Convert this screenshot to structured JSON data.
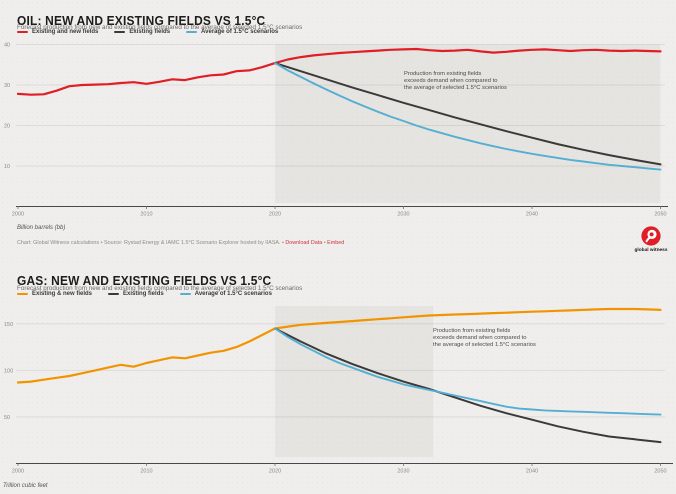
{
  "page": {
    "background": "#efeeec"
  },
  "branding": {
    "logo_label": "global witness",
    "logo_color": "#df1e26"
  },
  "chart_data": [
    {
      "id": "oil",
      "type": "line",
      "title": "OIL: NEW AND EXISTING FIELDS VS 1.5°C",
      "subtitle": "Forecast production from new and existing fields compared to the average of selected 1.5°C scenarios",
      "xlabel": "",
      "ylabel": "Billion barrels (bb)",
      "x_ticks": [
        2000,
        2010,
        2020,
        2030,
        2040,
        2050
      ],
      "y_ticks": [
        10,
        20,
        30,
        40
      ],
      "xlim": [
        2000,
        2050
      ],
      "ylim": [
        0,
        41
      ],
      "grid": true,
      "legend_position": "top-left",
      "colors": {
        "shade": "#e6e4e1",
        "axis": "#4a4846",
        "grid": "rgba(0,0,0,0.08)",
        "tick_text": "#8c8a86"
      },
      "legend": [
        {
          "label": "Existing and new fields",
          "color": "#df1e26"
        },
        {
          "label": "Existing fields",
          "color": "#3a3a38"
        },
        {
          "label": "Average of 1.5°C scenarios",
          "color": "#55aed4"
        }
      ],
      "shaded_region": {
        "x_start": 2020,
        "x_end": 2050
      },
      "annotation": {
        "lines": [
          "Production from existing fields",
          "exceeds demand when compared to",
          "the average of selected 1.5°C scenarios"
        ]
      },
      "series": [
        {
          "name": "Existing and new fields",
          "color": "#df1e26",
          "width": 2.2,
          "points": [
            [
              2000,
              27.8
            ],
            [
              2001,
              27.6
            ],
            [
              2002,
              27.7
            ],
            [
              2003,
              28.6
            ],
            [
              2004,
              29.7
            ],
            [
              2005,
              30.0
            ],
            [
              2006,
              30.1
            ],
            [
              2007,
              30.2
            ],
            [
              2008,
              30.5
            ],
            [
              2009,
              30.7
            ],
            [
              2010,
              30.3
            ],
            [
              2011,
              30.8
            ],
            [
              2012,
              31.4
            ],
            [
              2013,
              31.2
            ],
            [
              2014,
              31.9
            ],
            [
              2015,
              32.4
            ],
            [
              2016,
              32.6
            ],
            [
              2017,
              33.4
            ],
            [
              2018,
              33.6
            ],
            [
              2019,
              34.4
            ],
            [
              2020,
              35.4
            ],
            [
              2021,
              36.3
            ],
            [
              2022,
              36.9
            ],
            [
              2023,
              37.3
            ],
            [
              2024,
              37.6
            ],
            [
              2025,
              37.9
            ],
            [
              2026,
              38.1
            ],
            [
              2027,
              38.3
            ],
            [
              2028,
              38.5
            ],
            [
              2029,
              38.7
            ],
            [
              2030,
              38.8
            ],
            [
              2031,
              38.9
            ],
            [
              2032,
              38.6
            ],
            [
              2033,
              38.4
            ],
            [
              2034,
              38.5
            ],
            [
              2035,
              38.7
            ],
            [
              2036,
              38.3
            ],
            [
              2037,
              38.0
            ],
            [
              2038,
              38.2
            ],
            [
              2039,
              38.5
            ],
            [
              2040,
              38.7
            ],
            [
              2041,
              38.8
            ],
            [
              2042,
              38.6
            ],
            [
              2043,
              38.4
            ],
            [
              2044,
              38.6
            ],
            [
              2045,
              38.7
            ],
            [
              2046,
              38.5
            ],
            [
              2047,
              38.4
            ],
            [
              2048,
              38.5
            ],
            [
              2049,
              38.4
            ],
            [
              2050,
              38.3
            ]
          ]
        },
        {
          "name": "Existing fields",
          "color": "#3a3a38",
          "width": 2.0,
          "points": [
            [
              2020,
              35.4
            ],
            [
              2022,
              33.4
            ],
            [
              2024,
              31.4
            ],
            [
              2026,
              29.4
            ],
            [
              2028,
              27.5
            ],
            [
              2030,
              25.6
            ],
            [
              2032,
              23.8
            ],
            [
              2034,
              22.0
            ],
            [
              2036,
              20.3
            ],
            [
              2038,
              18.6
            ],
            [
              2040,
              17.0
            ],
            [
              2042,
              15.4
            ],
            [
              2044,
              14.0
            ],
            [
              2046,
              12.7
            ],
            [
              2048,
              11.5
            ],
            [
              2050,
              10.4
            ]
          ]
        },
        {
          "name": "Average of 1.5°C scenarios",
          "color": "#55aed4",
          "width": 1.9,
          "points": [
            [
              2020,
              35.4
            ],
            [
              2021,
              33.6
            ],
            [
              2022,
              32.0
            ],
            [
              2023,
              30.4
            ],
            [
              2024,
              28.9
            ],
            [
              2025,
              27.4
            ],
            [
              2026,
              26.0
            ],
            [
              2027,
              24.7
            ],
            [
              2028,
              23.4
            ],
            [
              2029,
              22.2
            ],
            [
              2030,
              21.1
            ],
            [
              2031,
              20.0
            ],
            [
              2032,
              19.0
            ],
            [
              2033,
              18.1
            ],
            [
              2034,
              17.2
            ],
            [
              2035,
              16.4
            ],
            [
              2036,
              15.6
            ],
            [
              2037,
              14.9
            ],
            [
              2038,
              14.2
            ],
            [
              2039,
              13.6
            ],
            [
              2040,
              13.0
            ],
            [
              2041,
              12.5
            ],
            [
              2042,
              12.0
            ],
            [
              2043,
              11.5
            ],
            [
              2044,
              11.1
            ],
            [
              2045,
              10.7
            ],
            [
              2046,
              10.3
            ],
            [
              2047,
              10.0
            ],
            [
              2048,
              9.7
            ],
            [
              2049,
              9.4
            ],
            [
              2050,
              9.1
            ]
          ]
        }
      ],
      "source": {
        "text": "Chart: Global Witness calculations • Source: Rystad Energy & IAMC 1.5°C Scenario Explorer hosted by IIASA. • ",
        "link_download": "Download Data",
        "separator": " • ",
        "link_embed": "Embed"
      }
    },
    {
      "id": "gas",
      "type": "line",
      "title": "GAS: NEW AND EXISTING FIELDS VS 1.5°C",
      "subtitle": "Forecast production from new and existing fields compared to the average of selected 1.5°C scenarios",
      "xlabel": "",
      "ylabel": "Trillion cubic feet",
      "x_ticks": [
        2000,
        2010,
        2020,
        2030,
        2040,
        2050
      ],
      "y_ticks": [
        50,
        100,
        150
      ],
      "xlim": [
        2000,
        2050
      ],
      "ylim": [
        0,
        170
      ],
      "grid": true,
      "legend_position": "top-left",
      "colors": {
        "shade": "#e6e4e1",
        "axis": "#4a4846",
        "grid": "rgba(0,0,0,0.08)",
        "tick_text": "#8c8a86"
      },
      "legend": [
        {
          "label": "Existing & new fields",
          "color": "#f29400"
        },
        {
          "label": "Existing fields",
          "color": "#3a3a38"
        },
        {
          "label": "Average of 1.5°C scenarios",
          "color": "#55aed4"
        }
      ],
      "shaded_region": {
        "x_start": 2020,
        "x_end": 2032.3
      },
      "annotation": {
        "lines": [
          "Production from existing fields",
          "exceeds demand when compared to",
          "the average of selected 1.5°C scenarios"
        ]
      },
      "series": [
        {
          "name": "Existing & new fields",
          "color": "#f29400",
          "width": 2.2,
          "points": [
            [
              2000,
              87
            ],
            [
              2001,
              88
            ],
            [
              2002,
              90
            ],
            [
              2003,
              92
            ],
            [
              2004,
              94
            ],
            [
              2005,
              97
            ],
            [
              2006,
              100
            ],
            [
              2007,
              103
            ],
            [
              2008,
              106
            ],
            [
              2009,
              104
            ],
            [
              2010,
              108
            ],
            [
              2011,
              111
            ],
            [
              2012,
              114
            ],
            [
              2013,
              113
            ],
            [
              2014,
              116
            ],
            [
              2015,
              119
            ],
            [
              2016,
              121
            ],
            [
              2017,
              125
            ],
            [
              2018,
              131
            ],
            [
              2019,
              138
            ],
            [
              2020,
              145
            ],
            [
              2021,
              147
            ],
            [
              2022,
              149
            ],
            [
              2023,
              150
            ],
            [
              2024,
              151
            ],
            [
              2025,
              152
            ],
            [
              2026,
              153
            ],
            [
              2027,
              154
            ],
            [
              2028,
              155
            ],
            [
              2029,
              156
            ],
            [
              2030,
              157
            ],
            [
              2031,
              158
            ],
            [
              2032,
              159
            ],
            [
              2033,
              159.5
            ],
            [
              2034,
              160
            ],
            [
              2035,
              160.5
            ],
            [
              2036,
              161
            ],
            [
              2037,
              161.5
            ],
            [
              2038,
              162
            ],
            [
              2039,
              162.5
            ],
            [
              2040,
              163
            ],
            [
              2041,
              163.5
            ],
            [
              2042,
              164
            ],
            [
              2043,
              164.5
            ],
            [
              2044,
              165
            ],
            [
              2045,
              165.5
            ],
            [
              2046,
              166
            ],
            [
              2047,
              166
            ],
            [
              2048,
              166
            ],
            [
              2049,
              165.5
            ],
            [
              2050,
              165
            ]
          ]
        },
        {
          "name": "Existing fields",
          "color": "#3a3a38",
          "width": 2.0,
          "points": [
            [
              2020,
              145
            ],
            [
              2022,
              131
            ],
            [
              2024,
              118
            ],
            [
              2026,
              107
            ],
            [
              2028,
              97
            ],
            [
              2030,
              88
            ],
            [
              2032,
              80
            ],
            [
              2034,
              71
            ],
            [
              2036,
              62
            ],
            [
              2038,
              54
            ],
            [
              2040,
              47
            ],
            [
              2042,
              40
            ],
            [
              2044,
              34
            ],
            [
              2046,
              29
            ],
            [
              2048,
              26
            ],
            [
              2050,
              23
            ]
          ]
        },
        {
          "name": "Average of 1.5°C scenarios",
          "color": "#55aed4",
          "width": 1.9,
          "points": [
            [
              2020,
              145
            ],
            [
              2021,
              136
            ],
            [
              2022,
              128
            ],
            [
              2023,
              121
            ],
            [
              2024,
              114
            ],
            [
              2025,
              108
            ],
            [
              2026,
              103
            ],
            [
              2027,
              98
            ],
            [
              2028,
              93
            ],
            [
              2029,
              89
            ],
            [
              2030,
              85
            ],
            [
              2031,
              82
            ],
            [
              2032,
              79
            ],
            [
              2033,
              76
            ],
            [
              2034,
              73
            ],
            [
              2035,
              70
            ],
            [
              2036,
              67
            ],
            [
              2037,
              64
            ],
            [
              2038,
              61
            ],
            [
              2039,
              59
            ],
            [
              2040,
              58
            ],
            [
              2041,
              57
            ],
            [
              2042,
              56.5
            ],
            [
              2043,
              56
            ],
            [
              2044,
              55.5
            ],
            [
              2045,
              55
            ],
            [
              2046,
              54.5
            ],
            [
              2047,
              54
            ],
            [
              2048,
              53.5
            ],
            [
              2049,
              53
            ],
            [
              2050,
              52.5
            ]
          ]
        }
      ]
    }
  ]
}
